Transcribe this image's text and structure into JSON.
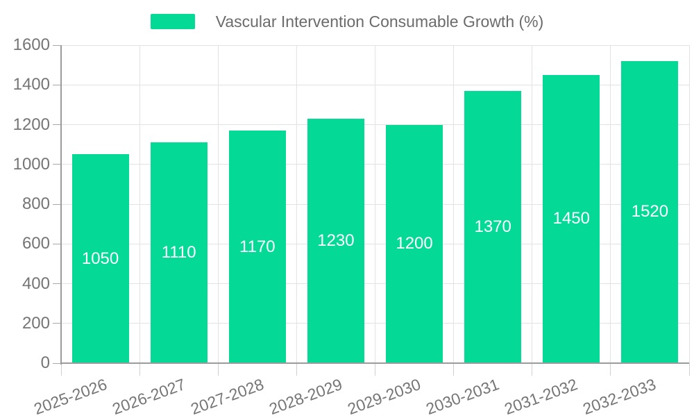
{
  "chart_data": {
    "type": "bar",
    "title": "Vascular Intervention Consumable Growth (%)",
    "legend_position": "top-center",
    "categories": [
      "2025-2026",
      "2026-2027",
      "2027-2028",
      "2028-2029",
      "2029-2030",
      "2030-2031",
      "2031-2032",
      "2032-2033"
    ],
    "values": [
      1050,
      1110,
      1170,
      1230,
      1200,
      1370,
      1450,
      1520
    ],
    "xlabel": "",
    "ylabel": "",
    "ylim": [
      0,
      1600
    ],
    "ytick_step": 200,
    "grid": true,
    "bar_color": "#05d996",
    "value_label_color": "#ffffff",
    "axis_label_color": "#757575",
    "legend_text_color": "#6b6b6b",
    "gridline_color": "#e2e2e2",
    "axis_line_color": "#9b9b9b",
    "x_tick_color": "#cfcfcf",
    "y_tick_color": "#a8a8a8"
  }
}
